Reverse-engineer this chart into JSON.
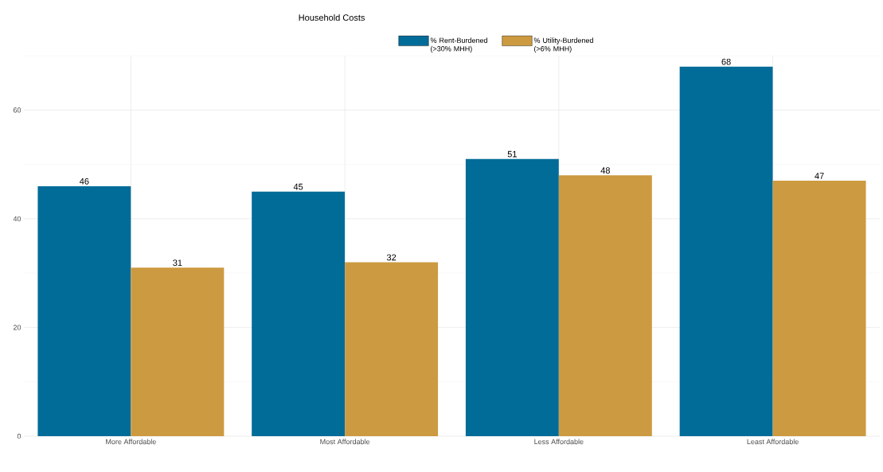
{
  "chart_data": {
    "type": "bar",
    "legend_title": "Household Costs",
    "categories": [
      "More Affordable",
      "Most Affordable",
      "Less Affordable",
      "Least Affordable"
    ],
    "series": [
      {
        "name": "% Rent-Burdened (>30% MHH)",
        "color": "#026c99",
        "values": [
          46,
          45,
          51,
          68
        ]
      },
      {
        "name": "% Utility-Burdened (>6% MHH)",
        "color": "#cc9a40",
        "values": [
          31,
          32,
          48,
          47
        ]
      }
    ],
    "ylim": [
      0,
      70
    ],
    "yticks": [
      0,
      20,
      40,
      60
    ],
    "grid": true,
    "legend": "top",
    "data_labels": true
  }
}
